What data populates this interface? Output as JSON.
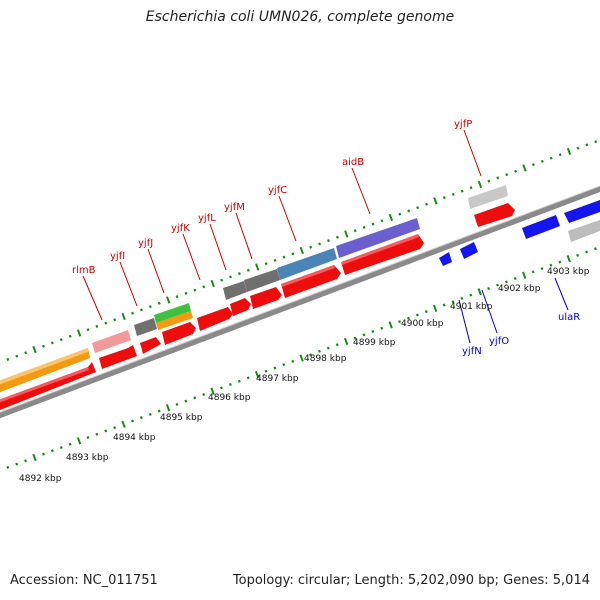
{
  "title": "Escherichia coli UMN026, complete genome",
  "footer": {
    "accession": "Accession: NC_011751",
    "stats": "Topology: circular; Length: 5,202,090 bp; Genes: 5,014"
  },
  "colors": {
    "backbone": "#888888",
    "tick": "#1a8a1a",
    "forward_label": "#cc0000",
    "reverse_label": "#0000cc",
    "scale_label": "#111111"
  },
  "scale_labels": [
    "4892 kbp",
    "4893 kbp",
    "4894 kbp",
    "4895 kbp",
    "4896 kbp",
    "4897 kbp",
    "4898 kbp",
    "4899 kbp",
    "4900 kbp",
    "4901 kbp",
    "4902 kbp",
    "4903 kbp"
  ],
  "forward_labels": [
    "rlmB",
    "yjfI",
    "yjfJ",
    "yjfK",
    "yjfL",
    "yjfM",
    "yjfC",
    "aidB",
    "yjfP"
  ],
  "reverse_labels": [
    "yjfN",
    "yjfO",
    "ulaR"
  ]
}
